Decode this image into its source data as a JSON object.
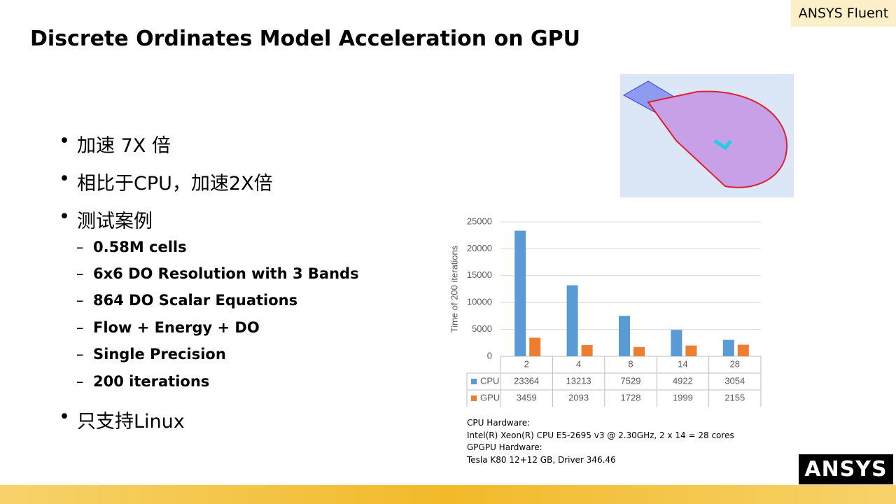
{
  "header": {
    "title": "Discrete Ordinates Model Acceleration on GPU",
    "tag": "ANSYS Fluent"
  },
  "bullets": [
    {
      "text": "加速 7X 倍"
    },
    {
      "text": "相比于CPU，加速2X倍"
    },
    {
      "text": "测试案例",
      "items": [
        "0.58M cells",
        "6x6 DO Resolution with 3 Bands",
        "864 DO Scalar Equations",
        "Flow + Energy + DO",
        "Single Precision",
        "200 iterations"
      ]
    },
    {
      "text": "只支持Linux"
    }
  ],
  "chart_data": {
    "type": "bar",
    "ylabel": "Time of 200 iterations",
    "categories": [
      "2",
      "4",
      "8",
      "14",
      "28"
    ],
    "series": [
      {
        "name": "CPU",
        "color": "#5b9bd5",
        "values": [
          23364,
          13213,
          7529,
          4922,
          3054
        ]
      },
      {
        "name": "GPU",
        "color": "#ed7d31",
        "values": [
          3459,
          2093,
          1728,
          1999,
          2155
        ]
      }
    ],
    "ylim": [
      0,
      25000
    ],
    "yticks": [
      0,
      5000,
      10000,
      15000,
      20000,
      25000
    ],
    "grid": true
  },
  "hardware_notes": [
    "CPU Hardware:",
    "Intel(R) Xeon(R) CPU E5-2695 v3 @ 2.30GHz, 2 x 14 = 28 cores",
    "GPGPU Hardware:",
    "Tesla K80 12+12 GB, Driver 346.46"
  ],
  "logo": "ANSYS"
}
